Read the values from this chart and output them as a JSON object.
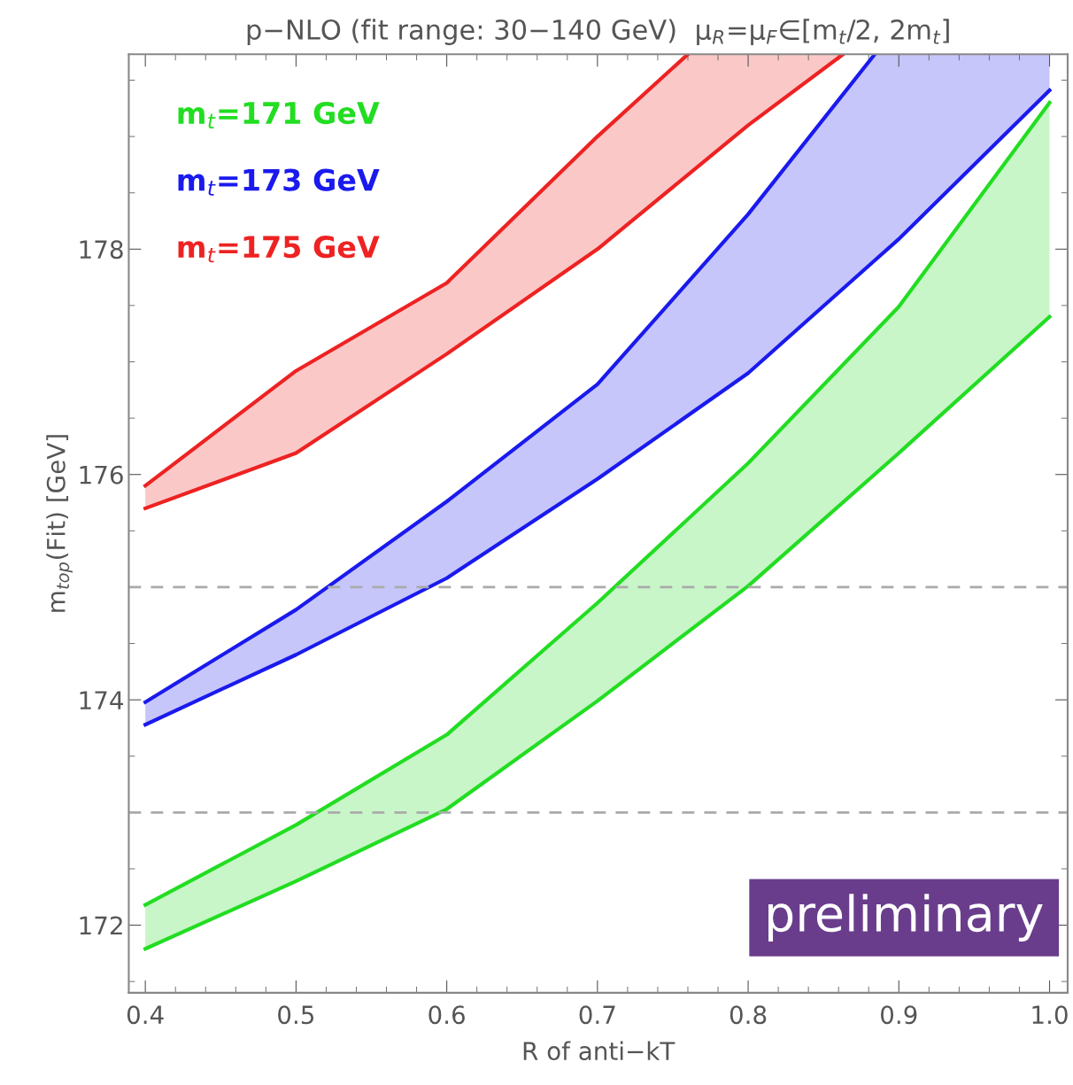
{
  "chart_data": {
    "type": "line",
    "title": "p−NLO (fit range: 30−140 GeV)  μ$_{R}$=μ$_{F}$∈[m$_{t}$/2, 2m$_{t}$]",
    "xlabel": "R of anti−kT",
    "ylabel": "m$_{top}$(Fit) [GeV]",
    "xlim": [
      0.389,
      1.012
    ],
    "ylim": [
      171.4,
      179.73
    ],
    "xticks": [
      0.4,
      0.5,
      0.6,
      0.7,
      0.8,
      0.9,
      {
        "value": 1.0,
        "label": "1.0"
      }
    ],
    "yticks": [
      172,
      174,
      176,
      178
    ],
    "legend": "top left",
    "grid": false,
    "series": [
      {
        "name": "m$_{t}$=171 GeV",
        "color": "#22dd22",
        "x": [
          0.4,
          0.5,
          0.6,
          0.7,
          0.8,
          0.9,
          1.0
        ],
        "values": [
          172.18,
          172.89,
          173.69,
          174.86,
          176.1,
          177.49,
          179.3
        ]
      },
      {
        "color": "#22dd22",
        "x": [
          0.4,
          0.5,
          0.6,
          0.7,
          0.8,
          0.9,
          1.0
        ],
        "values": [
          171.79,
          172.39,
          173.03,
          173.99,
          175.01,
          176.19,
          177.4
        ],
        "lower": [
          171.79,
          172.39,
          173.03,
          173.99,
          175.01,
          176.19,
          177.4
        ],
        "upper": [
          172.18,
          172.89,
          173.69,
          174.86,
          176.1,
          177.49,
          179.3
        ]
      },
      {
        "name": "m$_{t}$=173 GeV",
        "color": "#1a1aee",
        "x": [
          0.4,
          0.5,
          0.6,
          0.7,
          0.8,
          0.884
        ],
        "values": [
          173.98,
          174.8,
          175.76,
          176.8,
          178.31,
          179.73
        ]
      },
      {
        "color": "#1a1aee",
        "x": [
          0.4,
          0.5,
          0.6,
          0.7,
          0.8,
          0.884,
          0.9,
          1.0
        ],
        "values": [
          173.78,
          174.4,
          175.08,
          175.96,
          176.9,
          177.9,
          178.09,
          179.41
        ],
        "lower": [
          173.78,
          174.4,
          175.08,
          175.96,
          176.9,
          177.9,
          178.09,
          179.41
        ],
        "upper": [
          173.98,
          174.8,
          175.76,
          176.8,
          178.31,
          179.73,
          179.73,
          179.73
        ]
      },
      {
        "name": "m$_{t}$=175 GeV",
        "color": "#ee2222",
        "x": [
          0.4,
          0.5,
          0.6,
          0.7,
          0.76
        ],
        "values": [
          175.9,
          176.92,
          177.7,
          179.0,
          179.73
        ]
      },
      {
        "color": "#ee2222",
        "x": [
          0.4,
          0.5,
          0.6,
          0.7,
          0.76,
          0.8,
          0.863
        ],
        "values": [
          175.7,
          176.19,
          177.07,
          178.0,
          178.66,
          179.1,
          179.73
        ],
        "lower": [
          175.7,
          176.19,
          177.07,
          178.0,
          178.66,
          179.1,
          179.73
        ],
        "upper": [
          175.9,
          176.92,
          177.7,
          179.0,
          179.73,
          179.73,
          179.73
        ]
      }
    ],
    "ref_lines": [
      {
        "axis": "y",
        "value": 175,
        "color": "#aaaaaa",
        "line_style": "dashed"
      },
      {
        "axis": "y",
        "value": 173,
        "color": "#aaaaaa",
        "line_style": "dashed"
      }
    ],
    "annotations": [
      "preliminary"
    ]
  }
}
